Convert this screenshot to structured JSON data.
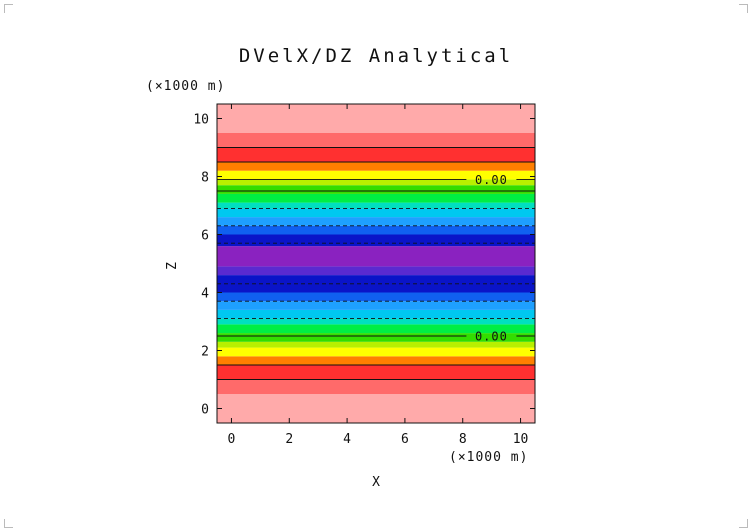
{
  "chart_data": {
    "type": "heatmap",
    "title": "DVelX/DZ Analytical",
    "xlabel": "X",
    "ylabel": "Z",
    "x_unit": "(×1000 m)",
    "y_unit": "(×1000 m)",
    "xlim": [
      -0.5,
      10.5
    ],
    "ylim": [
      -0.5,
      10.5
    ],
    "xticks": [
      0,
      2,
      4,
      6,
      8,
      10
    ],
    "yticks": [
      0,
      2,
      4,
      6,
      8,
      10
    ],
    "grid": false,
    "bands": [
      {
        "z0": -0.5,
        "z1": 0.5,
        "color": "#ffaaaa"
      },
      {
        "z0": 0.5,
        "z1": 1.0,
        "color": "#ff6a6a"
      },
      {
        "z0": 1.0,
        "z1": 1.5,
        "color": "#ff3030"
      },
      {
        "z0": 1.5,
        "z1": 1.8,
        "color": "#ff7f00"
      },
      {
        "z0": 1.8,
        "z1": 2.1,
        "color": "#ffff00"
      },
      {
        "z0": 2.1,
        "z1": 2.3,
        "color": "#b8f000"
      },
      {
        "z0": 2.3,
        "z1": 2.6,
        "color": "#33dd00"
      },
      {
        "z0": 2.6,
        "z1": 2.9,
        "color": "#00ee44"
      },
      {
        "z0": 2.9,
        "z1": 3.1,
        "color": "#00e0c0"
      },
      {
        "z0": 3.1,
        "z1": 3.4,
        "color": "#00c8f0"
      },
      {
        "z0": 3.4,
        "z1": 3.7,
        "color": "#1ea0ff"
      },
      {
        "z0": 3.7,
        "z1": 4.0,
        "color": "#1060f0"
      },
      {
        "z0": 4.0,
        "z1": 4.6,
        "color": "#0a14c8"
      },
      {
        "z0": 4.6,
        "z1": 4.9,
        "color": "#5a2ad0"
      },
      {
        "z0": 4.9,
        "z1": 5.6,
        "color": "#8a22c0"
      },
      {
        "z0": 5.6,
        "z1": 6.0,
        "color": "#0a14c8"
      },
      {
        "z0": 6.0,
        "z1": 6.3,
        "color": "#1060f0"
      },
      {
        "z0": 6.3,
        "z1": 6.6,
        "color": "#1ea0ff"
      },
      {
        "z0": 6.6,
        "z1": 6.9,
        "color": "#00c8f0"
      },
      {
        "z0": 6.9,
        "z1": 7.1,
        "color": "#00e0c0"
      },
      {
        "z0": 7.1,
        "z1": 7.4,
        "color": "#00ee44"
      },
      {
        "z0": 7.4,
        "z1": 7.7,
        "color": "#33dd00"
      },
      {
        "z0": 7.7,
        "z1": 7.9,
        "color": "#b8f000"
      },
      {
        "z0": 7.9,
        "z1": 8.2,
        "color": "#ffff00"
      },
      {
        "z0": 8.2,
        "z1": 8.5,
        "color": "#ff7f00"
      },
      {
        "z0": 8.5,
        "z1": 9.0,
        "color": "#ff3030"
      },
      {
        "z0": 9.0,
        "z1": 9.5,
        "color": "#ff6a6a"
      },
      {
        "z0": 9.5,
        "z1": 10.5,
        "color": "#ffaaaa"
      }
    ],
    "contours": [
      {
        "z": 1.0,
        "style": "solid"
      },
      {
        "z": 1.5,
        "style": "solid"
      },
      {
        "z": 2.5,
        "style": "solid",
        "label": "0.00"
      },
      {
        "z": 3.1,
        "style": "dashed"
      },
      {
        "z": 3.7,
        "style": "dashed"
      },
      {
        "z": 4.3,
        "style": "dashed"
      },
      {
        "z": 5.7,
        "style": "dashed"
      },
      {
        "z": 6.3,
        "style": "dashed"
      },
      {
        "z": 6.9,
        "style": "dashed"
      },
      {
        "z": 7.5,
        "style": "solid"
      },
      {
        "z": 7.9,
        "style": "solid",
        "label": "0.00"
      },
      {
        "z": 8.5,
        "style": "solid"
      },
      {
        "z": 9.0,
        "style": "solid"
      }
    ],
    "label_x": 8.3
  }
}
